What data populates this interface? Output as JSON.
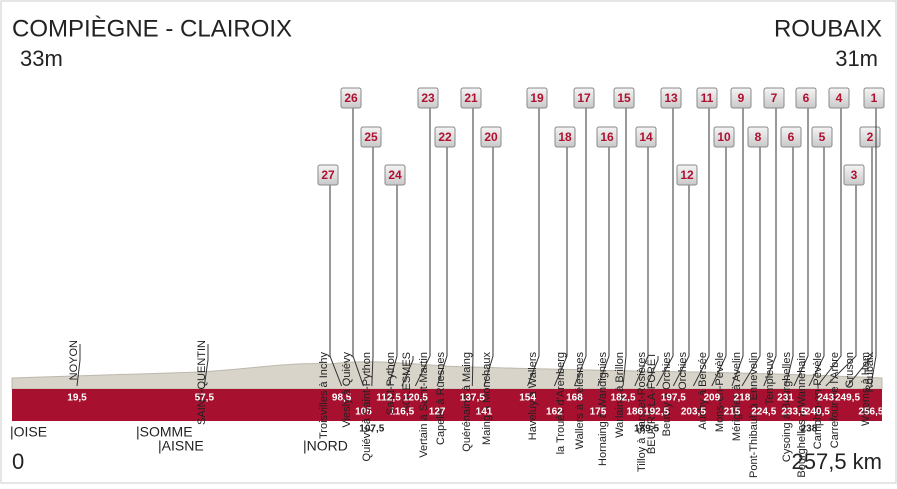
{
  "header": {
    "start": "COMPIÈGNE - CLAIROIX",
    "start_alt": "33m",
    "finish": "ROUBAIX",
    "finish_alt": "31m",
    "start_km": "0",
    "total_km": "257,5 km"
  },
  "regions": [
    "|OISE",
    "|SOMME",
    "|AISNE",
    "|NORD"
  ],
  "towns": [
    {
      "label": "NOYON",
      "km": "19,5"
    },
    {
      "label": "SAINT-QUENTIN",
      "km": "57,5"
    },
    {
      "label": "SOLESMES",
      "km": "116,5"
    },
    {
      "label": "BEUVRY-LA-FORÊT",
      "km": "189,5"
    }
  ],
  "sectors": [
    {
      "number": "27",
      "label": "Troisvilles à Inchy",
      "km": "98,5"
    },
    {
      "number": "26",
      "label": "Viesly à Quiévy",
      "km": "105"
    },
    {
      "number": "25",
      "label": "Quiévy à Saint-Python",
      "km": "107,5"
    },
    {
      "number": "24",
      "label": "Saint-Python",
      "km": "112,5"
    },
    {
      "number": "23",
      "label": "Vertain à Saint-Martin",
      "km": "120,5"
    },
    {
      "number": "22",
      "label": "Capelle à Ruesnes",
      "km": "127"
    },
    {
      "number": "21",
      "label": "Quérénaing à Maing",
      "km": "137,5"
    },
    {
      "number": "20",
      "label": "Maing à Monchaux",
      "km": "141"
    },
    {
      "number": "19",
      "label": "Haveluy à Wallers",
      "km": "154"
    },
    {
      "number": "18",
      "label": "la Trouée d'Arenberg",
      "km": "162"
    },
    {
      "number": "17",
      "label": "Wallers à Hélesmes",
      "km": "168"
    },
    {
      "number": "16",
      "label": "Hornaing à Wandignies",
      "km": "175"
    },
    {
      "number": "15",
      "label": "Warlaing à Brillon",
      "km": "182,5"
    },
    {
      "number": "14",
      "label": "Tilloy à Sars-et-Rosières",
      "km": "186"
    },
    {
      "number": "13",
      "label": "Beuvry à Orchies",
      "km": "192,5"
    },
    {
      "number": "12",
      "label": "Orchies",
      "km": "197,5"
    },
    {
      "number": "11",
      "label": "Auchy à Bersée",
      "km": "203,5"
    },
    {
      "number": "10",
      "label": "Mons-en-Pévèle",
      "km": "209"
    },
    {
      "number": "9",
      "label": "Mérignies à Avelin",
      "km": "215"
    },
    {
      "number": "8",
      "label": "Pont-Thibault à Ennevelin",
      "km": "218"
    },
    {
      "number": "7",
      "label": "Templeuve",
      "km": "224,5"
    },
    {
      "number": "6",
      "label": "Cysoing à Bourghelles",
      "km": "231"
    },
    {
      "number": "6",
      "label": "Bourghelles à Wannehain",
      "km": "233,5"
    },
    {
      "number": "5",
      "label": "Camphin-en-Pévèle",
      "km": "238"
    },
    {
      "number": "4",
      "label": "Carrefour de l'Arbre",
      "km": "240,5"
    },
    {
      "number": "3",
      "label": "Gruson",
      "km": "243"
    },
    {
      "number": "2",
      "label": "Willems à Hem",
      "km": "249,5"
    },
    {
      "number": "1",
      "label": "Roubaix",
      "km": "256,5"
    }
  ]
}
